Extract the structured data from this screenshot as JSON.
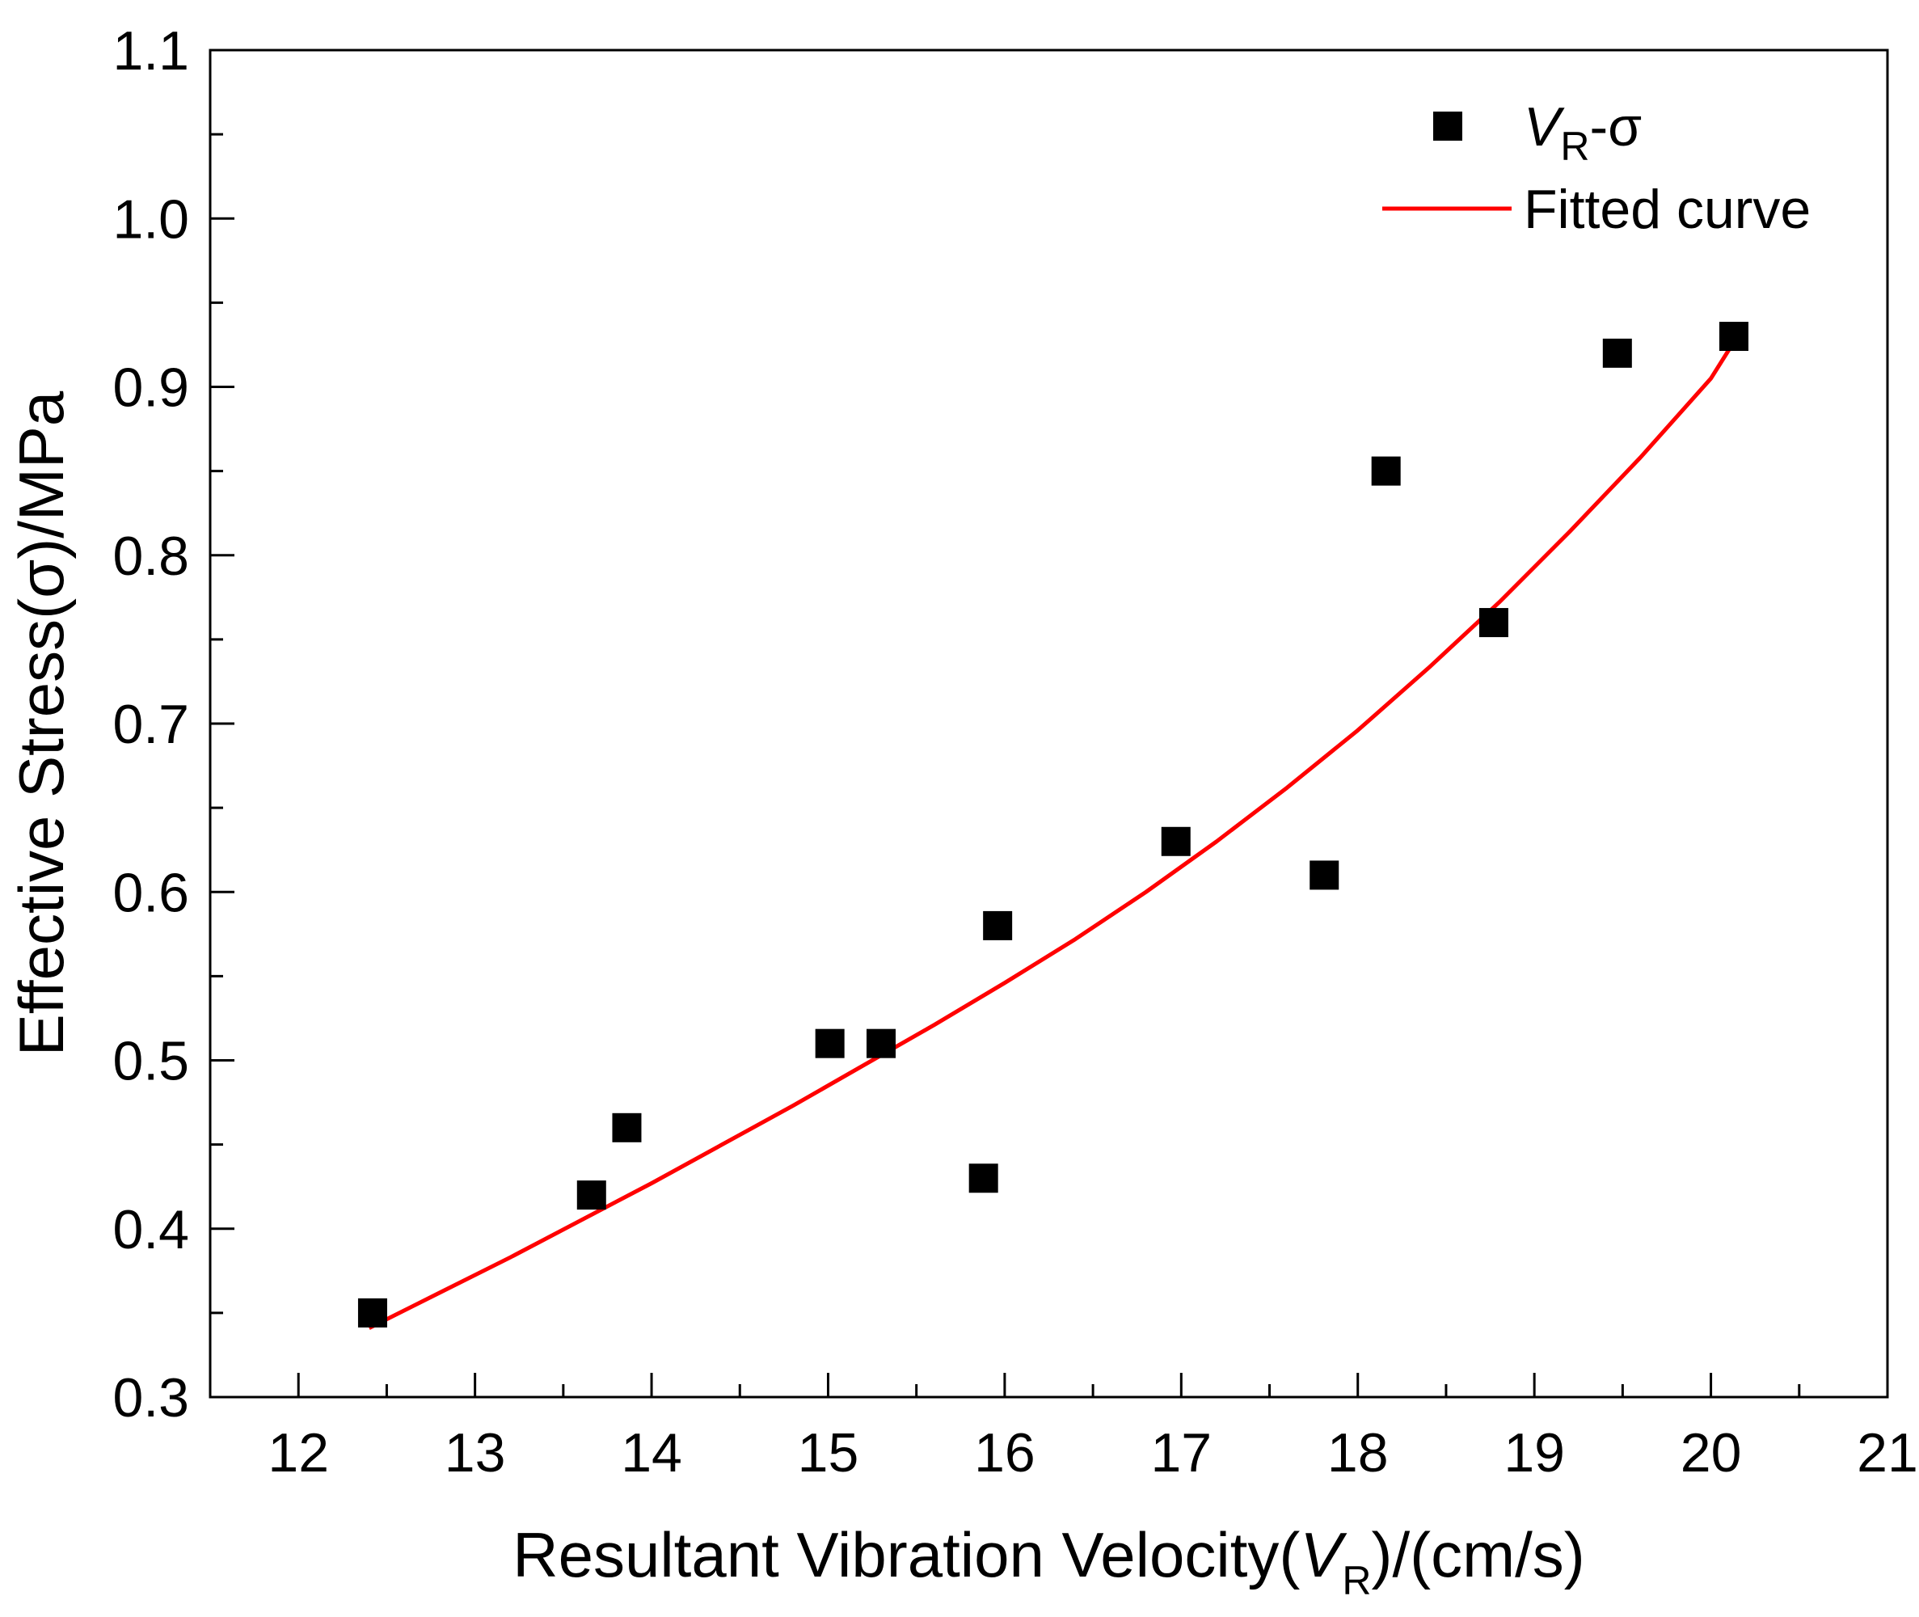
{
  "chart_data": {
    "type": "scatter",
    "title": "",
    "xlabel": {
      "prefix": "Resultant Vibration Velocity(",
      "var": "V",
      "sub": "R",
      "suffix": ")/(cm/s)"
    },
    "ylabel": "Effective Stress(σ)/MPa",
    "xlim": [
      11.5,
      21
    ],
    "ylim": [
      0.3,
      1.1
    ],
    "xticks": [
      12,
      13,
      14,
      15,
      16,
      17,
      18,
      19,
      20,
      21
    ],
    "yticks": [
      0.3,
      0.4,
      0.5,
      0.6,
      0.7,
      0.8,
      0.9,
      1.0,
      1.1
    ],
    "xtick_labels": [
      "12",
      "13",
      "14",
      "15",
      "16",
      "17",
      "18",
      "19",
      "20",
      "21"
    ],
    "ytick_labels": [
      "0.3",
      "0.4",
      "0.5",
      "0.6",
      "0.7",
      "0.8",
      "0.9",
      "1.0",
      "1.1"
    ],
    "grid": false,
    "legend_position": "top-right",
    "series": [
      {
        "name": "VR-σ",
        "legend": {
          "var": "V",
          "sub": "R",
          "suffix": "-σ"
        },
        "kind": "scatter",
        "marker": "square",
        "color": "#000000",
        "x": [
          12.42,
          13.66,
          13.86,
          15.01,
          15.3,
          15.88,
          15.96,
          16.97,
          17.81,
          18.16,
          18.77,
          19.47,
          20.13
        ],
        "y": [
          0.35,
          0.42,
          0.46,
          0.51,
          0.51,
          0.43,
          0.58,
          0.63,
          0.61,
          0.85,
          0.76,
          0.92,
          0.93
        ]
      },
      {
        "name": "Fitted curve",
        "legend": {
          "label": "Fitted curve"
        },
        "kind": "line",
        "color": "#ff0000",
        "x": [
          12.4,
          12.8,
          13.2,
          13.6,
          14.0,
          14.4,
          14.8,
          15.2,
          15.6,
          16.0,
          16.4,
          16.8,
          17.2,
          17.6,
          18.0,
          18.4,
          18.8,
          19.2,
          19.6,
          20.0,
          20.15
        ],
        "y": [
          0.341,
          0.362,
          0.383,
          0.405,
          0.427,
          0.45,
          0.473,
          0.497,
          0.521,
          0.546,
          0.572,
          0.6,
          0.63,
          0.662,
          0.696,
          0.733,
          0.772,
          0.814,
          0.858,
          0.905,
          0.93
        ]
      }
    ]
  }
}
